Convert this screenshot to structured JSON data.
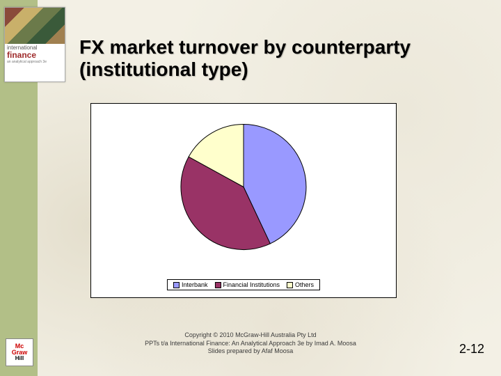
{
  "sidebar": {
    "color": "#b2bf87"
  },
  "book": {
    "line1_prefix": "international",
    "line1_big": "finance",
    "sub": "an analytical approach 3e"
  },
  "title": "FX market turnover by counterparty (institutional type)",
  "chart": {
    "type": "pie",
    "background_color": "#ffffff",
    "border_color": "#000000",
    "radius": 90,
    "stroke": "#000000",
    "stroke_width": 1,
    "start_angle_deg": -90,
    "slices": [
      {
        "label": "Interbank",
        "value": 43,
        "color": "#9999ff"
      },
      {
        "label": "Financial Institutions",
        "value": 40,
        "color": "#993366"
      },
      {
        "label": "Others",
        "value": 17,
        "color": "#ffffcc"
      }
    ],
    "legend": {
      "border_color": "#000000",
      "font_size": 9,
      "items": [
        {
          "label": "Interbank",
          "swatch": "#9999ff"
        },
        {
          "label": "Financial Institutions",
          "swatch": "#993366"
        },
        {
          "label": "Others",
          "swatch": "#ffffcc"
        }
      ]
    }
  },
  "footer": {
    "line1": "Copyright © 2010 McGraw-Hill Australia Pty Ltd",
    "line2": "PPTs t/a International Finance: An Analytical Approach 3e by Imad A. Moosa",
    "line3": "Slides prepared by Afaf Moosa"
  },
  "logo": {
    "top": "Mc",
    "mid": "Graw",
    "bot": "Hill"
  },
  "page_number": "2-12"
}
